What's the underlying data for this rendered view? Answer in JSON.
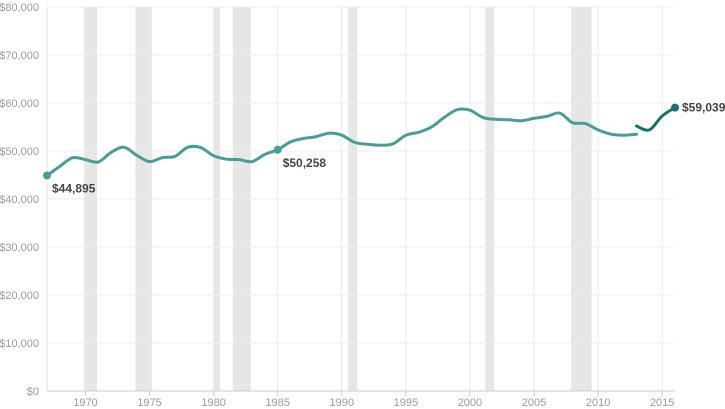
{
  "chart_data": {
    "type": "line",
    "title": "",
    "xlabel": "",
    "ylabel": "",
    "xlim": [
      1967,
      2016
    ],
    "ylim": [
      0,
      80000
    ],
    "grid": true,
    "y_ticks": [
      {
        "value": 0,
        "label": "$0"
      },
      {
        "value": 10000,
        "label": "$10,000"
      },
      {
        "value": 20000,
        "label": "$20,000"
      },
      {
        "value": 30000,
        "label": "$30,000"
      },
      {
        "value": 40000,
        "label": "$40,000"
      },
      {
        "value": 50000,
        "label": "$50,000"
      },
      {
        "value": 60000,
        "label": "$60,000"
      },
      {
        "value": 70000,
        "label": "$70,000"
      },
      {
        "value": 80000,
        "label": "$80,000"
      }
    ],
    "x_ticks": [
      {
        "value": 1970,
        "label": "1970"
      },
      {
        "value": 1975,
        "label": "1975"
      },
      {
        "value": 1980,
        "label": "1980"
      },
      {
        "value": 1985,
        "label": "1985"
      },
      {
        "value": 1990,
        "label": "1990"
      },
      {
        "value": 1995,
        "label": "1995"
      },
      {
        "value": 2000,
        "label": "2000"
      },
      {
        "value": 2005,
        "label": "2005"
      },
      {
        "value": 2010,
        "label": "2010"
      },
      {
        "value": 2015,
        "label": "2015"
      }
    ],
    "recessions": [
      [
        1969.9,
        1970.9
      ],
      [
        1973.9,
        1975.2
      ],
      [
        1980.0,
        1980.5
      ],
      [
        1981.5,
        1982.9
      ],
      [
        1990.5,
        1991.2
      ],
      [
        2001.2,
        2001.9
      ],
      [
        2007.9,
        2009.5
      ]
    ],
    "series": [
      {
        "color": "#4a9d97",
        "x": [
          1967,
          1968,
          1969,
          1970,
          1971,
          1972,
          1973,
          1974,
          1975,
          1976,
          1977,
          1978,
          1979,
          1980,
          1981,
          1982,
          1983,
          1984,
          1985,
          1986,
          1987,
          1988,
          1989,
          1990,
          1991,
          1992,
          1993,
          1994,
          1995,
          1996,
          1997,
          1998,
          1999,
          2000,
          2001,
          2002,
          2003,
          2004,
          2005,
          2006,
          2007,
          2008,
          2009,
          2010,
          2011,
          2012,
          2013
        ],
        "values": [
          44895,
          46800,
          48600,
          48200,
          47700,
          49700,
          50800,
          49100,
          47800,
          48600,
          48900,
          50800,
          50700,
          49000,
          48300,
          48200,
          47800,
          49300,
          50258,
          51900,
          52600,
          53000,
          53700,
          53300,
          51800,
          51400,
          51200,
          51500,
          53300,
          53900,
          55000,
          57000,
          58600,
          58500,
          57000,
          56600,
          56500,
          56300,
          56800,
          57200,
          57900,
          55900,
          55700,
          54400,
          53500,
          53300,
          53500
        ]
      },
      {
        "color": "#19706d",
        "x": [
          2013,
          2014,
          2015,
          2016
        ],
        "values": [
          55200,
          54400,
          57300,
          59039
        ]
      }
    ],
    "annotations": [
      {
        "x": 1967,
        "value": 44895,
        "label": "$44,895",
        "color": "#4a9d97",
        "placement": "below-right"
      },
      {
        "x": 1985,
        "value": 50258,
        "label": "$50,258",
        "color": "#4a9d97",
        "placement": "below-right"
      },
      {
        "x": 2016,
        "value": 59039,
        "label": "$59,039",
        "color": "#19706d",
        "placement": "right"
      }
    ]
  }
}
